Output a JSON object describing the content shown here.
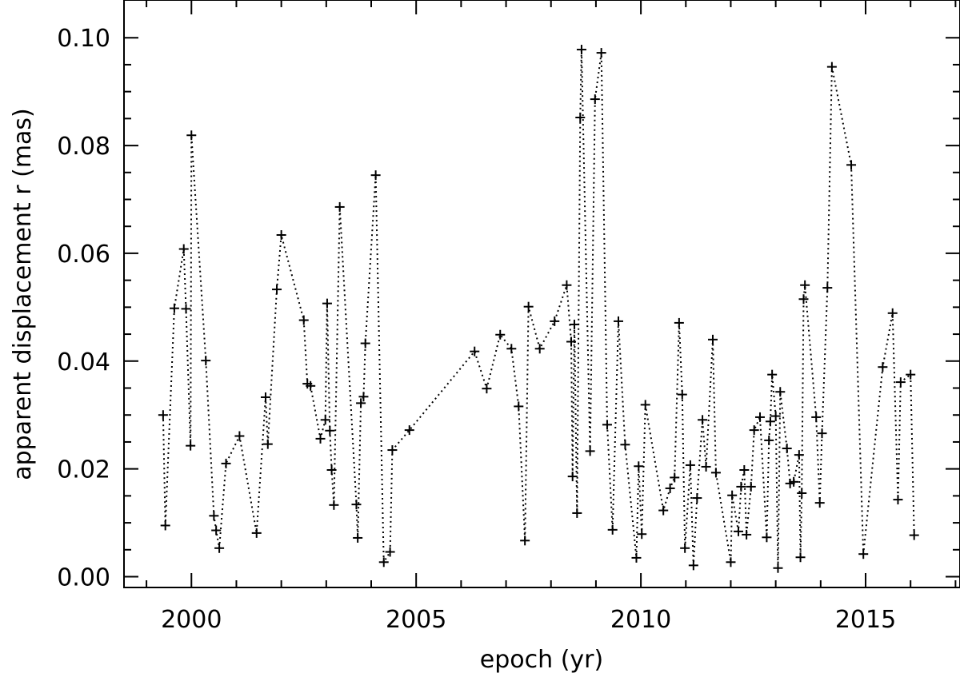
{
  "chart_data": {
    "type": "scatter",
    "xlabel": "epoch (yr)",
    "ylabel": "apparent displacement r (mas)",
    "xlim": [
      1998.5,
      2017.1
    ],
    "ylim": [
      -0.002,
      0.107
    ],
    "x_ticks": [
      2000,
      2005,
      2010,
      2015
    ],
    "x_tick_labels": [
      "2000",
      "2005",
      "2010",
      "2015"
    ],
    "y_ticks": [
      0.0,
      0.02,
      0.04,
      0.06,
      0.08,
      0.1
    ],
    "y_tick_labels": [
      "0.00",
      "0.02",
      "0.04",
      "0.06",
      "0.08",
      "0.10"
    ],
    "grid": false,
    "line_style": "dotted",
    "marker": "plus",
    "colors": {
      "series": "#000000",
      "background": "#ffffff"
    },
    "series": [
      {
        "x": [
          1999.37,
          1999.42,
          1999.62,
          1999.83,
          1999.88,
          1999.98,
          2000.0,
          2000.32,
          2000.5,
          2000.55,
          2000.62,
          2000.77,
          2001.07,
          2001.45,
          2001.65,
          2001.7,
          2001.9,
          2002.0,
          2002.5,
          2002.58,
          2002.65,
          2002.87,
          2002.98,
          2003.02,
          2003.08,
          2003.12,
          2003.17,
          2003.3,
          2003.67,
          2003.7,
          2003.77,
          2003.83,
          2003.87,
          2004.1,
          2004.28,
          2004.42,
          2004.47,
          2004.85,
          2006.3,
          2006.57,
          2006.87,
          2007.12,
          2007.28,
          2007.42,
          2007.5,
          2007.75,
          2008.08,
          2008.35,
          2008.45,
          2008.48,
          2008.52,
          2008.58,
          2008.65,
          2008.68,
          2008.87,
          2008.98,
          2009.12,
          2009.25,
          2009.37,
          2009.5,
          2009.65,
          2009.9,
          2009.95,
          2010.02,
          2010.1,
          2010.5,
          2010.65,
          2010.75,
          2010.85,
          2010.92,
          2010.98,
          2011.1,
          2011.17,
          2011.25,
          2011.37,
          2011.45,
          2011.6,
          2011.67,
          2012.0,
          2012.03,
          2012.17,
          2012.23,
          2012.3,
          2012.35,
          2012.45,
          2012.52,
          2012.65,
          2012.8,
          2012.85,
          2012.88,
          2012.92,
          2013.0,
          2013.05,
          2013.1,
          2013.25,
          2013.32,
          2013.4,
          2013.52,
          2013.55,
          2013.58,
          2013.62,
          2013.65,
          2013.9,
          2013.98,
          2014.03,
          2014.15,
          2014.25,
          2014.68,
          2014.95,
          2015.38,
          2015.6,
          2015.72,
          2015.78,
          2016.0,
          2016.08
        ],
        "y": [
          0.03,
          0.0095,
          0.0498,
          0.0608,
          0.0497,
          0.0243,
          0.0819,
          0.0401,
          0.0113,
          0.0086,
          0.0053,
          0.021,
          0.0261,
          0.0081,
          0.0333,
          0.0246,
          0.0533,
          0.0634,
          0.0476,
          0.0358,
          0.0354,
          0.0256,
          0.0291,
          0.0507,
          0.0271,
          0.0198,
          0.0133,
          0.0686,
          0.0134,
          0.0072,
          0.0322,
          0.0334,
          0.0433,
          0.0745,
          0.0027,
          0.0046,
          0.0235,
          0.0272,
          0.0418,
          0.0349,
          0.0449,
          0.0423,
          0.0316,
          0.0067,
          0.0501,
          0.0423,
          0.0474,
          0.0541,
          0.0436,
          0.0186,
          0.0468,
          0.0118,
          0.0852,
          0.0978,
          0.0233,
          0.0886,
          0.0972,
          0.0282,
          0.0087,
          0.0474,
          0.0245,
          0.0035,
          0.0205,
          0.0079,
          0.0319,
          0.0123,
          0.0164,
          0.0184,
          0.0471,
          0.0338,
          0.0053,
          0.0207,
          0.0021,
          0.0146,
          0.0291,
          0.0204,
          0.044,
          0.0193,
          0.0027,
          0.0151,
          0.0084,
          0.0167,
          0.0198,
          0.0078,
          0.0167,
          0.0272,
          0.0296,
          0.0073,
          0.0253,
          0.0288,
          0.0375,
          0.0298,
          0.0016,
          0.0343,
          0.0238,
          0.0173,
          0.0176,
          0.0226,
          0.0036,
          0.0155,
          0.0515,
          0.0541,
          0.0296,
          0.0137,
          0.0266,
          0.0536,
          0.0946,
          0.0764,
          0.0042,
          0.0389,
          0.0489,
          0.0143,
          0.0361,
          0.0375,
          0.0077
        ]
      }
    ]
  }
}
